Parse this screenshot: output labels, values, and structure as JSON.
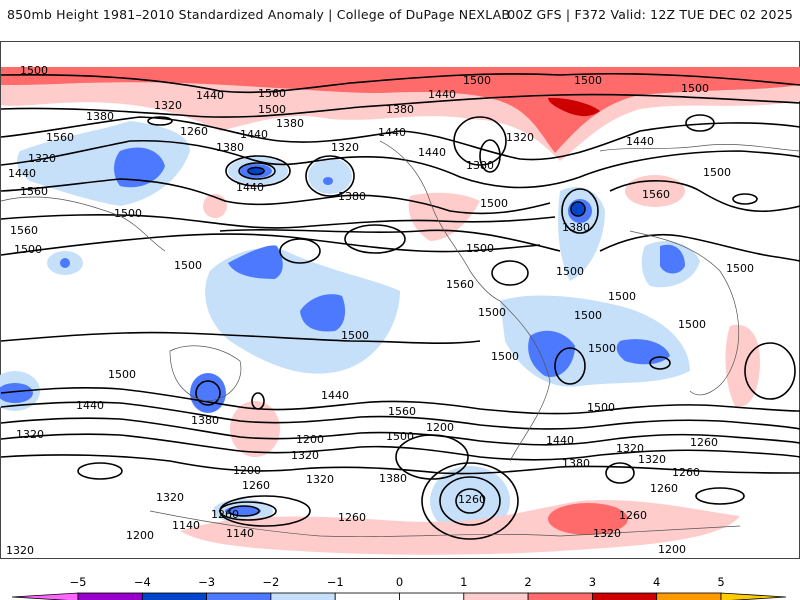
{
  "header": {
    "title": "850mb Height 1981–2010 Standardized Anomaly | College of DuPage NEXLAB",
    "run_info": "00Z GFS | F372 Valid: 12Z TUE DEC 02 2025"
  },
  "map": {
    "field": "850mb geopotential height (m) contours with standardized anomaly shading",
    "contour_interval": 60,
    "contour_labels": [
      {
        "text": "1500"
      },
      {
        "text": "1560"
      },
      {
        "text": "1320"
      },
      {
        "text": "1260"
      },
      {
        "text": "1380"
      },
      {
        "text": "1440"
      },
      {
        "text": "1320"
      },
      {
        "text": "1380"
      },
      {
        "text": "1440"
      },
      {
        "text": "1320"
      },
      {
        "text": "1440"
      },
      {
        "text": "1560"
      },
      {
        "text": "1380"
      },
      {
        "text": "1560"
      },
      {
        "text": "1500"
      },
      {
        "text": "1440"
      },
      {
        "text": "1380"
      },
      {
        "text": "1500"
      },
      {
        "text": "1500"
      },
      {
        "text": "1440"
      },
      {
        "text": "1380"
      },
      {
        "text": "1440"
      },
      {
        "text": "1320"
      },
      {
        "text": "1500"
      },
      {
        "text": "1500"
      },
      {
        "text": "1560"
      },
      {
        "text": "1500"
      },
      {
        "text": "1440"
      },
      {
        "text": "1380"
      },
      {
        "text": "1440"
      },
      {
        "text": "1500"
      },
      {
        "text": "1560"
      },
      {
        "text": "1380"
      },
      {
        "text": "1500"
      },
      {
        "text": "1500"
      },
      {
        "text": "1500"
      },
      {
        "text": "1500"
      },
      {
        "text": "1500"
      },
      {
        "text": "1560"
      },
      {
        "text": "1500"
      },
      {
        "text": "1500"
      },
      {
        "text": "1500"
      },
      {
        "text": "1500"
      },
      {
        "text": "1500"
      },
      {
        "text": "1500"
      },
      {
        "text": "1500"
      },
      {
        "text": "1500"
      },
      {
        "text": "1440"
      },
      {
        "text": "1380"
      },
      {
        "text": "1500"
      },
      {
        "text": "1440"
      },
      {
        "text": "1560"
      },
      {
        "text": "1320"
      },
      {
        "text": "1200"
      },
      {
        "text": "1260"
      },
      {
        "text": "1320"
      },
      {
        "text": "1200"
      },
      {
        "text": "1260"
      },
      {
        "text": "1200"
      },
      {
        "text": "1140"
      },
      {
        "text": "1320"
      },
      {
        "text": "1320"
      },
      {
        "text": "1320"
      },
      {
        "text": "1260"
      },
      {
        "text": "1380"
      },
      {
        "text": "1260"
      },
      {
        "text": "1320"
      },
      {
        "text": "1140"
      },
      {
        "text": "1200"
      },
      {
        "text": "1260"
      },
      {
        "text": "1380"
      },
      {
        "text": "1500"
      },
      {
        "text": "1440"
      },
      {
        "text": "1320"
      },
      {
        "text": "1260"
      },
      {
        "text": "1200"
      },
      {
        "text": "1260"
      },
      {
        "text": "1320"
      },
      {
        "text": "1260"
      }
    ]
  },
  "colorbar": {
    "ticks": [
      "−5",
      "−4",
      "−3",
      "−2",
      "−1",
      "0",
      "1",
      "2",
      "3",
      "4",
      "5"
    ],
    "bins": [
      {
        "range": "< -5",
        "color": "#ff66ff"
      },
      {
        "range": "-5 to -4",
        "color": "#9900cc"
      },
      {
        "range": "-4 to -3",
        "color": "#0044cc"
      },
      {
        "range": "-3 to -2",
        "color": "#4d79ff"
      },
      {
        "range": "-2 to -1",
        "color": "#c6e0fa"
      },
      {
        "range": "-1 to 0",
        "color": "#ffffff"
      },
      {
        "range": "0 to 1",
        "color": "#ffffff"
      },
      {
        "range": "1 to 2",
        "color": "#ffcccc"
      },
      {
        "range": "2 to 3",
        "color": "#ff6b6b"
      },
      {
        "range": "3 to 4",
        "color": "#cc0000"
      },
      {
        "range": "4 to 5",
        "color": "#ff9900"
      },
      {
        "range": "> 5",
        "color": "#ffcc00"
      }
    ]
  }
}
